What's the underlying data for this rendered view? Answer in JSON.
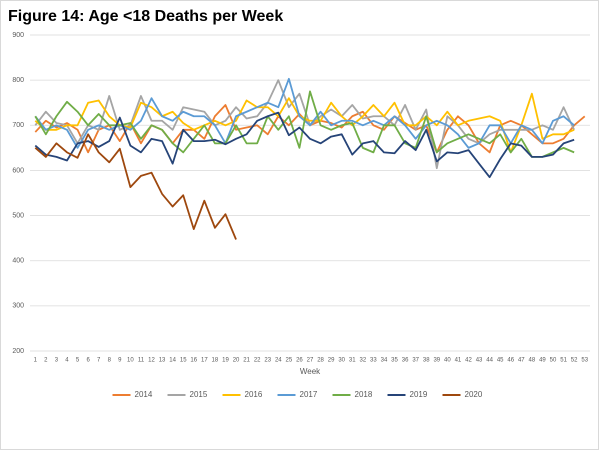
{
  "chart_data": {
    "type": "line",
    "title": "Figure 14: Age <18 Deaths per Week",
    "x_label": "Week",
    "categories": [
      "1",
      "2",
      "3",
      "4",
      "5",
      "6",
      "7",
      "8",
      "9",
      "10",
      "11",
      "12",
      "13",
      "14",
      "15",
      "16",
      "17",
      "18",
      "19",
      "20",
      "21",
      "22",
      "23",
      "24",
      "25",
      "26",
      "27",
      "28",
      "29",
      "30",
      "31",
      "32",
      "33",
      "34",
      "35",
      "36",
      "37",
      "38",
      "39",
      "40",
      "41",
      "42",
      "43",
      "44",
      "45",
      "46",
      "47",
      "48",
      "49",
      "50",
      "51",
      "52",
      "53"
    ],
    "ylim": [
      200,
      900
    ],
    "yticks": [
      200,
      300,
      400,
      500,
      600,
      700,
      800,
      900
    ],
    "grid": true,
    "legend": "bottom",
    "series": [
      {
        "name": "2014",
        "color": "#ED7D31",
        "values": [
          685,
          710,
          695,
          705,
          690,
          640,
          690,
          700,
          665,
          705,
          660,
          700,
          690,
          660,
          690,
          690,
          670,
          720,
          745,
          690,
          695,
          700,
          680,
          720,
          700,
          725,
          700,
          710,
          705,
          695,
          720,
          730,
          700,
          690,
          720,
          705,
          690,
          700,
          640,
          690,
          720,
          700,
          660,
          640,
          700,
          710,
          700,
          680,
          660,
          660,
          670,
          700,
          720
        ]
      },
      {
        "name": "2015",
        "color": "#A5A5A5",
        "values": [
          700,
          730,
          705,
          700,
          660,
          700,
          690,
          765,
          690,
          700,
          765,
          710,
          710,
          690,
          740,
          735,
          730,
          700,
          710,
          740,
          715,
          720,
          750,
          800,
          740,
          770,
          700,
          720,
          735,
          720,
          745,
          715,
          720,
          720,
          700,
          745,
          690,
          735,
          605,
          720,
          700,
          670,
          660,
          680,
          690,
          690,
          690,
          690,
          700,
          690,
          740,
          690,
          null
        ]
      },
      {
        "name": "2016",
        "color": "#FFC000",
        "values": [
          710,
          690,
          690,
          700,
          700,
          750,
          755,
          720,
          700,
          695,
          750,
          740,
          720,
          730,
          705,
          690,
          700,
          710,
          700,
          710,
          755,
          740,
          740,
          720,
          760,
          720,
          710,
          710,
          750,
          720,
          700,
          720,
          745,
          720,
          750,
          700,
          700,
          720,
          700,
          730,
          700,
          710,
          715,
          720,
          710,
          640,
          700,
          770,
          670,
          680,
          680,
          690,
          null
        ]
      },
      {
        "name": "2017",
        "color": "#5B9BD5",
        "values": [
          720,
          690,
          700,
          690,
          650,
          690,
          700,
          690,
          700,
          690,
          710,
          760,
          720,
          710,
          730,
          720,
          720,
          700,
          660,
          720,
          730,
          740,
          750,
          740,
          803,
          720,
          700,
          730,
          700,
          710,
          710,
          700,
          710,
          700,
          720,
          700,
          670,
          700,
          710,
          700,
          680,
          650,
          660,
          700,
          700,
          660,
          700,
          690,
          660,
          710,
          720,
          700,
          null
        ]
      },
      {
        "name": "2018",
        "color": "#70AD47",
        "values": [
          720,
          680,
          720,
          752,
          730,
          700,
          725,
          700,
          700,
          705,
          670,
          700,
          690,
          660,
          640,
          670,
          700,
          660,
          660,
          700,
          660,
          660,
          720,
          690,
          720,
          650,
          775,
          700,
          690,
          700,
          705,
          650,
          640,
          700,
          700,
          660,
          650,
          720,
          640,
          660,
          670,
          680,
          670,
          660,
          680,
          640,
          670,
          630,
          630,
          640,
          650,
          640,
          null
        ]
      },
      {
        "name": "2019",
        "color": "#264478",
        "values": [
          655,
          635,
          630,
          622,
          660,
          665,
          652,
          665,
          717,
          655,
          640,
          670,
          665,
          615,
          690,
          665,
          665,
          668,
          658,
          670,
          680,
          710,
          720,
          728,
          678,
          695,
          670,
          660,
          675,
          680,
          635,
          660,
          665,
          640,
          638,
          665,
          645,
          690,
          620,
          640,
          638,
          645,
          615,
          585,
          625,
          660,
          655,
          630,
          630,
          635,
          660,
          668,
          null
        ]
      },
      {
        "name": "2020",
        "color": "#9E480E",
        "values": [
          650,
          630,
          660,
          640,
          628,
          680,
          640,
          618,
          648,
          563,
          588,
          595,
          548,
          520,
          545,
          470,
          533,
          473,
          503,
          447,
          null,
          null,
          null,
          null,
          null,
          null,
          null,
          null,
          null,
          null,
          null,
          null,
          null,
          null,
          null,
          null,
          null,
          null,
          null,
          null,
          null,
          null,
          null,
          null,
          null,
          null,
          null,
          null,
          null,
          null,
          null,
          null,
          null
        ]
      }
    ]
  }
}
